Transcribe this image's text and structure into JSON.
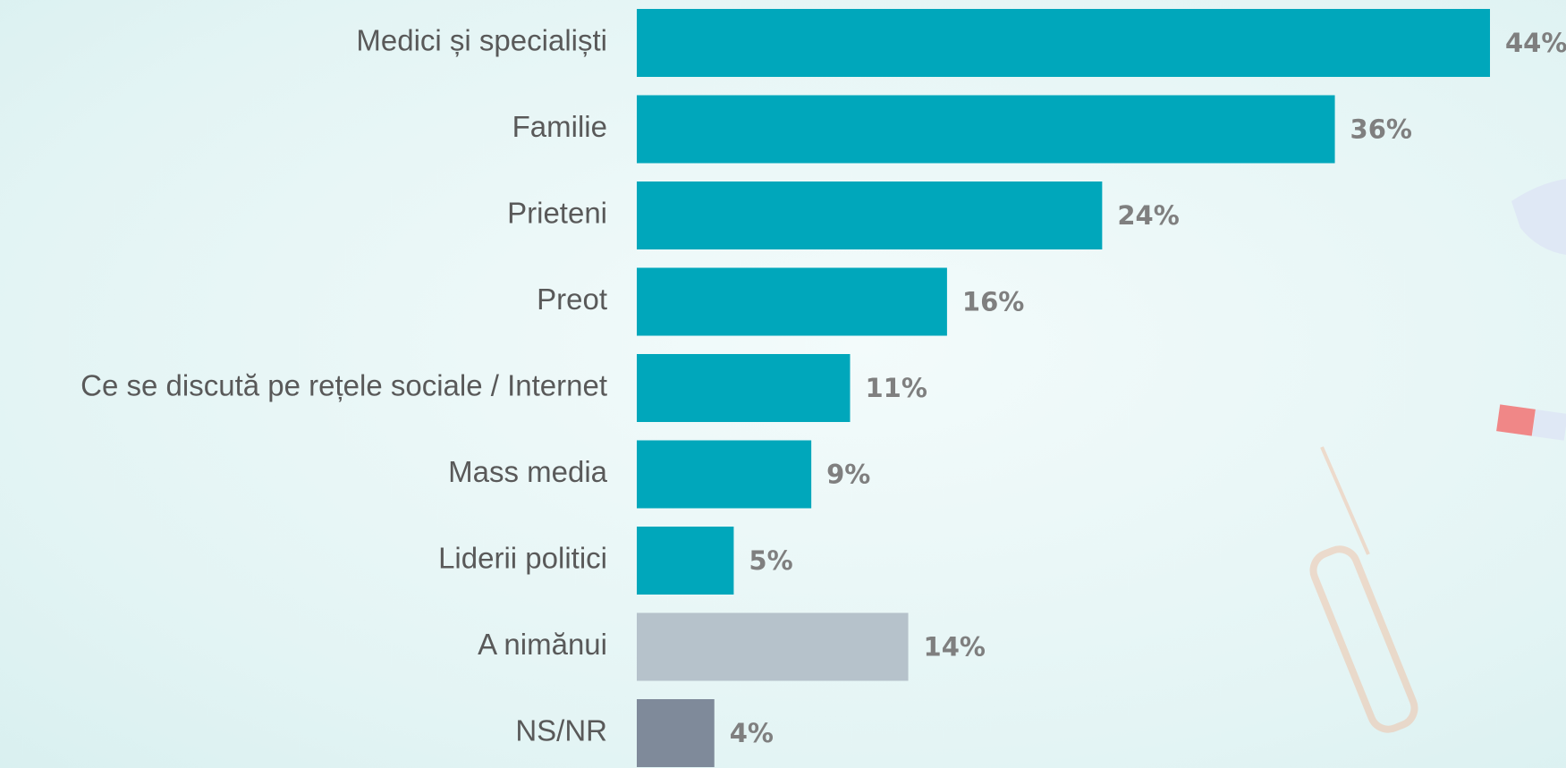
{
  "chart_data": {
    "type": "bar",
    "orientation": "horizontal",
    "categories": [
      "Medici și specialiști",
      "Familie",
      "Prieteni",
      "Preot",
      "Ce se discută pe rețele sociale / Internet",
      "Mass media",
      "Liderii politici",
      "A nimănui",
      "NS/NR"
    ],
    "values": [
      44,
      36,
      24,
      16,
      11,
      9,
      5,
      14,
      4
    ],
    "value_labels": [
      "44%",
      "36%",
      "24%",
      "16%",
      "11%",
      "9%",
      "5%",
      "14%",
      "4%"
    ],
    "colors": [
      "#00a7bb",
      "#00a7bb",
      "#00a7bb",
      "#00a7bb",
      "#00a7bb",
      "#00a7bb",
      "#00a7bb",
      "#b6c2cb",
      "#7f8a9a"
    ]
  }
}
